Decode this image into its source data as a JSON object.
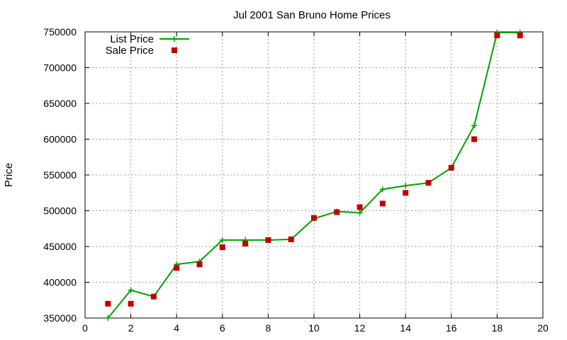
{
  "chart_data": {
    "type": "line",
    "title": "Jul 2001 San Bruno Home Prices",
    "xlabel": "",
    "ylabel": "Price",
    "xlim": [
      0,
      20
    ],
    "ylim": [
      350000,
      750000
    ],
    "x_ticks": [
      0,
      2,
      4,
      6,
      8,
      10,
      12,
      14,
      16,
      18,
      20
    ],
    "y_ticks": [
      350000,
      400000,
      450000,
      500000,
      550000,
      600000,
      650000,
      700000,
      750000
    ],
    "grid": true,
    "legend_position": "top-left",
    "series": [
      {
        "name": "List Price",
        "style": "line+plus",
        "color": "#00a000",
        "x": [
          1,
          2,
          3,
          4,
          5,
          6,
          7,
          8,
          9,
          10,
          11,
          12,
          13,
          14,
          15,
          16,
          17,
          18,
          19
        ],
        "values": [
          350000,
          389000,
          380000,
          425000,
          429000,
          459000,
          459000,
          459000,
          460000,
          489000,
          499000,
          497000,
          530000,
          535000,
          539000,
          560000,
          619000,
          749000,
          749000
        ]
      },
      {
        "name": "Sale Price",
        "style": "square",
        "color": "#c00000",
        "x": [
          1,
          2,
          3,
          4,
          5,
          6,
          7,
          8,
          9,
          10,
          11,
          12,
          13,
          14,
          15,
          16,
          17,
          18,
          19
        ],
        "values": [
          370000,
          370000,
          380000,
          420000,
          425000,
          449000,
          454000,
          459000,
          460000,
          490000,
          498000,
          505000,
          510000,
          525000,
          539000,
          560000,
          600000,
          745000,
          745000
        ]
      }
    ]
  }
}
